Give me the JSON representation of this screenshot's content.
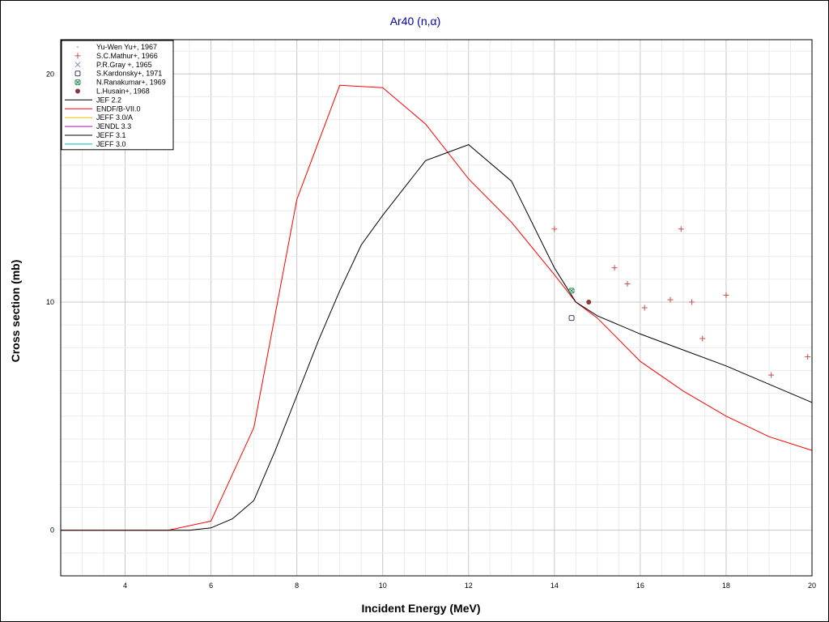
{
  "chart_data": {
    "type": "line",
    "title": "Ar40 (n,α)",
    "xlabel": "Incident Energy (MeV)",
    "ylabel": "Cross section (mb)",
    "xlim": [
      2.5,
      20
    ],
    "ylim": [
      -2,
      21.5
    ],
    "x_ticks": [
      4,
      6,
      8,
      10,
      12,
      14,
      16,
      18,
      20
    ],
    "y_ticks": [
      0,
      10,
      20
    ],
    "grid": true,
    "legend_position": "top-left",
    "colors": {
      "title": "#0000aa",
      "grid_major": "#c8c8c8",
      "grid_minor": "#ebebeb",
      "exp_marker": "#c0504d",
      "cross_marker": "#8080c0",
      "kardonsky_marker": "#404060",
      "ranakumar_marker": "#2e8b57",
      "husain_marker": "#8b3a3a"
    },
    "experimental": [
      {
        "name": "Yu-Wen Yu+, 1967",
        "marker": "dot",
        "color": "#808080",
        "points": []
      },
      {
        "name": "S.C.Mathur+, 1966",
        "marker": "plus",
        "color": "#c0504d",
        "points": [
          [
            14.0,
            13.2
          ],
          [
            15.4,
            11.5
          ],
          [
            15.7,
            10.8
          ],
          [
            16.1,
            9.75
          ],
          [
            16.7,
            10.1
          ],
          [
            16.95,
            13.2
          ],
          [
            17.2,
            10.0
          ],
          [
            17.45,
            8.4
          ],
          [
            18.0,
            10.3
          ],
          [
            19.05,
            6.8
          ],
          [
            19.9,
            7.6
          ]
        ]
      },
      {
        "name": "P.R.Gray +, 1965",
        "marker": "x",
        "color": "#8080c0",
        "points": []
      },
      {
        "name": "S.Kardonsky+, 1971",
        "marker": "open-square",
        "color": "#404060",
        "points": [
          [
            14.4,
            9.3
          ]
        ]
      },
      {
        "name": "N.Ranakumar+, 1969",
        "marker": "square-x",
        "color": "#2e8b57",
        "points": [
          [
            14.4,
            10.5
          ]
        ]
      },
      {
        "name": "L.Husain+, 1968",
        "marker": "filled-circle",
        "color": "#8b3a3a",
        "points": [
          [
            14.8,
            10.0
          ]
        ]
      }
    ],
    "series": [
      {
        "name": "JEF 2.2",
        "color": "#000000",
        "x": [],
        "y": []
      },
      {
        "name": "ENDF/B-VII.0",
        "color": "#ff0000",
        "x": [
          2.5,
          5.0,
          6.0,
          7.0,
          8.0,
          9.0,
          9.5,
          10.0,
          11.0,
          12.0,
          13.0,
          14.0,
          14.5,
          15.0,
          16.0,
          17.0,
          18.0,
          19.0,
          20.0
        ],
        "y": [
          0.0,
          0.0,
          0.4,
          4.5,
          14.5,
          19.5,
          19.45,
          19.4,
          17.8,
          15.4,
          13.5,
          11.2,
          10.0,
          9.3,
          7.4,
          6.1,
          5.0,
          4.1,
          3.5
        ]
      },
      {
        "name": "JEFF 3.0/A",
        "color": "#f0c000",
        "x": [],
        "y": []
      },
      {
        "name": "JENDL 3.3",
        "color": "#cc00cc",
        "x": [],
        "y": []
      },
      {
        "name": "JEFF 3.1",
        "color": "#000000",
        "x": [
          2.5,
          5.5,
          6.0,
          6.5,
          7.0,
          7.5,
          8.0,
          8.5,
          9.0,
          9.5,
          10.0,
          10.5,
          11.0,
          12.0,
          13.0,
          14.0,
          14.5,
          15.0,
          16.0,
          17.0,
          18.0,
          19.0,
          20.0
        ],
        "y": [
          0.0,
          0.0,
          0.1,
          0.5,
          1.3,
          3.5,
          5.9,
          8.3,
          10.5,
          12.5,
          13.8,
          15.0,
          16.2,
          16.9,
          15.3,
          11.5,
          10.0,
          9.4,
          8.6,
          7.9,
          7.2,
          6.4,
          5.6
        ]
      },
      {
        "name": "JEFF 3.0",
        "color": "#00bbbb",
        "x": [],
        "y": []
      }
    ]
  }
}
